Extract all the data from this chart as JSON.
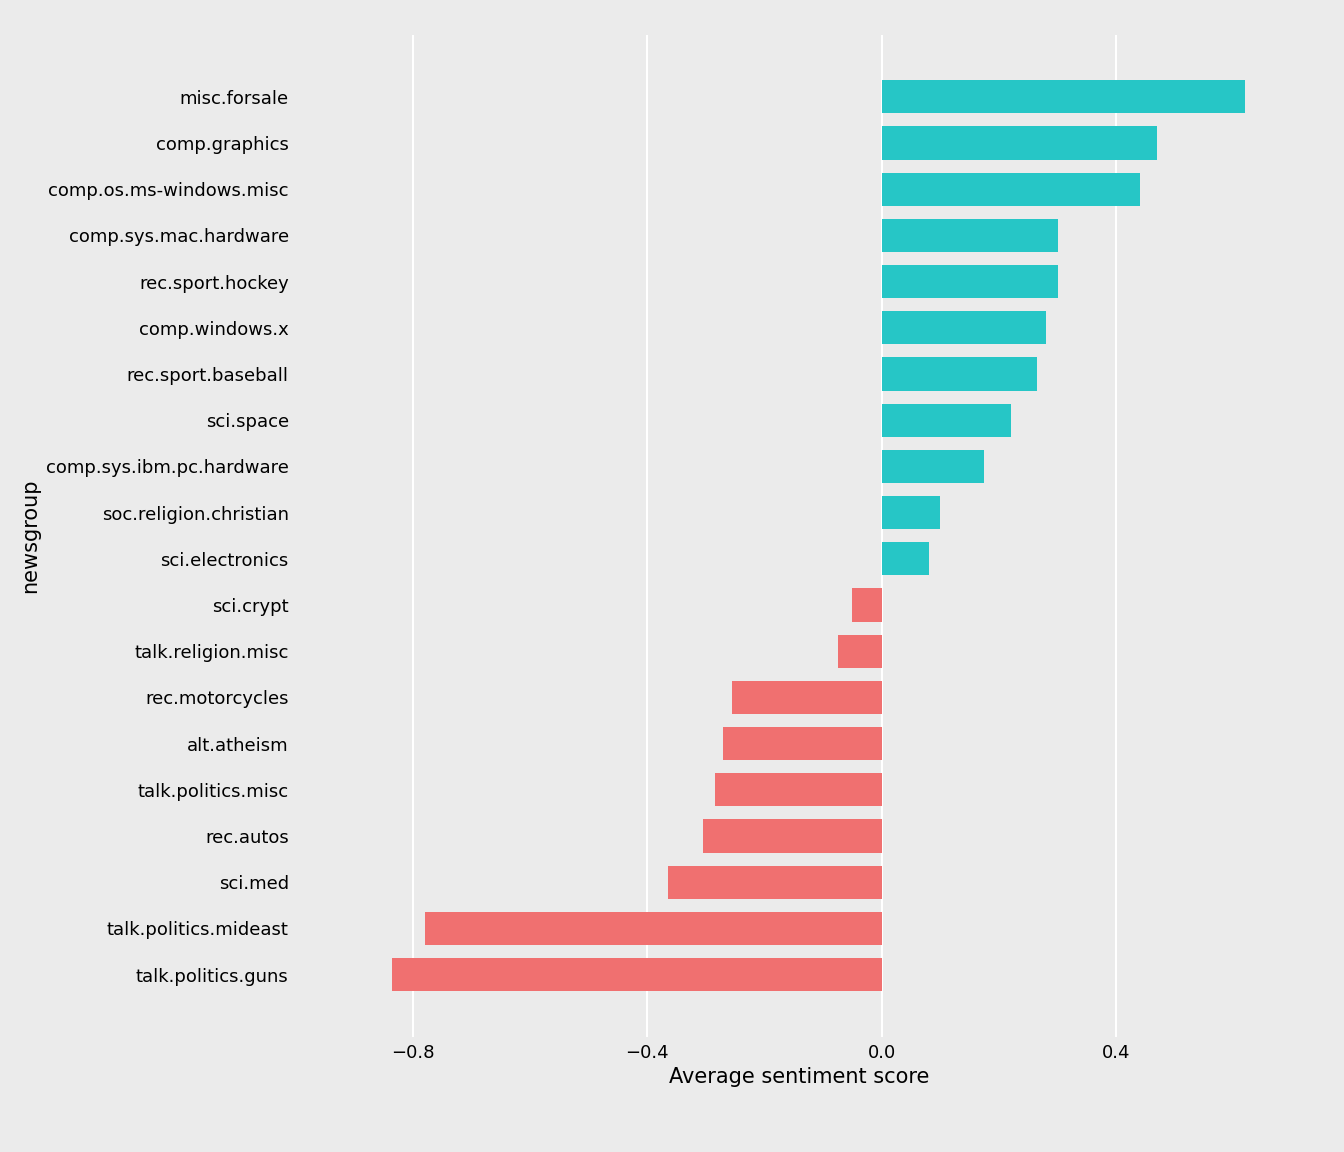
{
  "categories": [
    "misc.forsale",
    "comp.graphics",
    "comp.os.ms-windows.misc",
    "comp.sys.mac.hardware",
    "rec.sport.hockey",
    "comp.windows.x",
    "rec.sport.baseball",
    "sci.space",
    "comp.sys.ibm.pc.hardware",
    "soc.religion.christian",
    "sci.electronics",
    "sci.crypt",
    "talk.religion.misc",
    "rec.motorcycles",
    "alt.atheism",
    "talk.politics.misc",
    "rec.autos",
    "sci.med",
    "talk.politics.mideast",
    "talk.politics.guns"
  ],
  "values": [
    0.62,
    0.47,
    0.44,
    0.3,
    0.3,
    0.28,
    0.265,
    0.22,
    0.175,
    0.1,
    0.08,
    -0.05,
    -0.075,
    -0.255,
    -0.27,
    -0.285,
    -0.305,
    -0.365,
    -0.78,
    -0.835
  ],
  "positive_color": "#26C6C6",
  "negative_color": "#F07070",
  "background_color": "#EBEBEB",
  "grid_color": "#FFFFFF",
  "xlabel": "Average sentiment score",
  "ylabel": "newsgroup",
  "xlim": [
    -1.0,
    0.72
  ],
  "xticks": [
    -0.8,
    -0.4,
    0.0,
    0.4
  ],
  "label_fontsize": 15,
  "tick_fontsize": 13,
  "bar_height": 0.72
}
